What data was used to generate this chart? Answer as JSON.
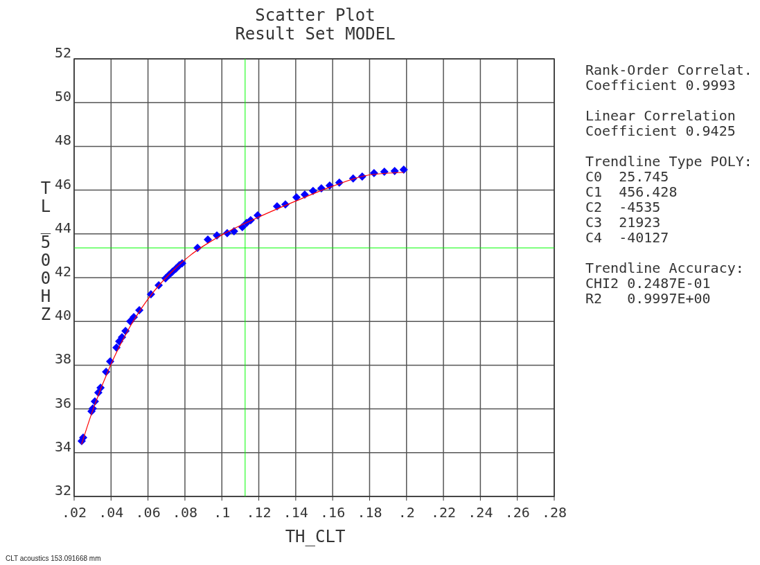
{
  "chart_data": {
    "type": "scatter",
    "title": "Scatter Plot",
    "subtitle": "Result Set MODEL",
    "xlabel": "TH_CLT",
    "ylabel": "TL_500HZ",
    "xlim": [
      0.02,
      0.28
    ],
    "ylim": [
      32,
      52
    ],
    "xticks": [
      {
        "value": 0.02,
        "label": ".02"
      },
      {
        "value": 0.04,
        "label": ".04"
      },
      {
        "value": 0.06,
        "label": ".06"
      },
      {
        "value": 0.08,
        "label": ".08"
      },
      {
        "value": 0.1,
        "label": ".1"
      },
      {
        "value": 0.12,
        "label": ".12"
      },
      {
        "value": 0.14,
        "label": ".14"
      },
      {
        "value": 0.16,
        "label": ".16"
      },
      {
        "value": 0.18,
        "label": ".18"
      },
      {
        "value": 0.2,
        "label": ".2"
      },
      {
        "value": 0.22,
        "label": ".22"
      },
      {
        "value": 0.24,
        "label": ".24"
      },
      {
        "value": 0.26,
        "label": ".26"
      },
      {
        "value": 0.28,
        "label": ".28"
      }
    ],
    "yticks": [
      32,
      34,
      36,
      38,
      40,
      42,
      44,
      46,
      48,
      50,
      52
    ],
    "grid": true,
    "marker": "diamond",
    "series": [
      {
        "color": "#0000ff",
        "x": [
          0.0241,
          0.0249,
          0.0294,
          0.0301,
          0.0312,
          0.0331,
          0.0343,
          0.0373,
          0.0395,
          0.0429,
          0.0444,
          0.0459,
          0.0478,
          0.0504,
          0.0523,
          0.0553,
          0.0616,
          0.0658,
          0.0695,
          0.0714,
          0.0733,
          0.0751,
          0.077,
          0.0785,
          0.0868,
          0.0924,
          0.0973,
          0.1029,
          0.1066,
          0.1111,
          0.1134,
          0.1156,
          0.1194,
          0.1299,
          0.1344,
          0.1404,
          0.1449,
          0.1494,
          0.1539,
          0.1584,
          0.1636,
          0.1711,
          0.176,
          0.1824,
          0.188,
          0.1936,
          0.1985
        ],
        "values": [
          34.53,
          34.69,
          35.89,
          36.02,
          36.34,
          36.75,
          36.97,
          37.7,
          38.17,
          38.8,
          39.09,
          39.28,
          39.56,
          40.01,
          40.2,
          40.51,
          41.24,
          41.65,
          41.97,
          42.13,
          42.28,
          42.41,
          42.57,
          42.66,
          43.36,
          43.74,
          43.93,
          44.03,
          44.12,
          44.31,
          44.5,
          44.63,
          44.85,
          45.26,
          45.35,
          45.67,
          45.8,
          45.96,
          46.08,
          46.21,
          46.34,
          46.53,
          46.62,
          46.78,
          46.84,
          46.87,
          46.94
        ]
      },
      {
        "type": "line",
        "color": "#ff0000",
        "marker": "none",
        "x": [
          0.024,
          0.03,
          0.04,
          0.05,
          0.06,
          0.08,
          0.1,
          0.12,
          0.14,
          0.16,
          0.18,
          0.1985
        ],
        "values": [
          34.38,
          35.92,
          38.05,
          39.72,
          41.02,
          42.82,
          43.95,
          44.77,
          45.5,
          46.18,
          46.7,
          46.81
        ]
      }
    ],
    "ref_lines": [
      {
        "axis": "x",
        "value": 0.1126,
        "color": "#00ff00"
      },
      {
        "axis": "y",
        "value": 43.36,
        "color": "#00ff00"
      }
    ],
    "annotations": [
      "Rank-Order Correlat.\nCoefficient 0.9993",
      "Linear Correlation\nCoefficient 0.9425",
      "Trendline Type POLY:\nC0  25.745\nC1  456.428\nC2  -4535\nC3  21923\nC4  -40127",
      "Trendline Accuracy:\nCHI2 0.2487E-01\nR2   0.9997E+00",
      "CLT acoustics 153.091668 mm"
    ]
  }
}
